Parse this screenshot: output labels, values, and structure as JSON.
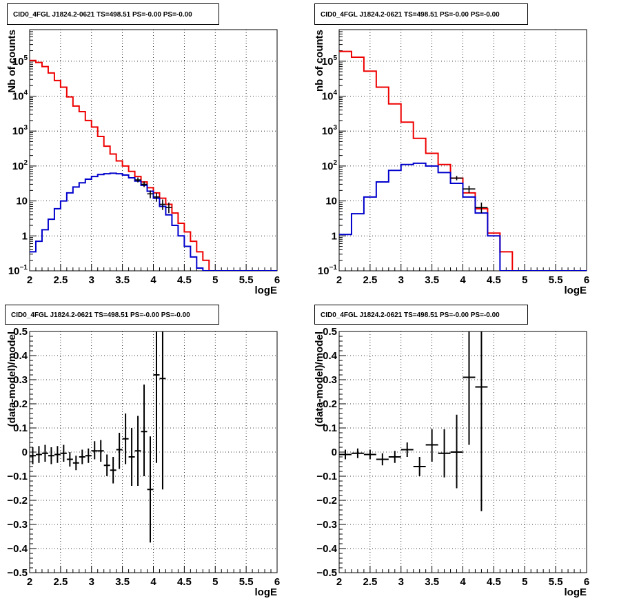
{
  "panels": [
    {
      "title": "CID0_4FGL J1824.2-0621 TS=498.51 PS=-0.00 PS=-0.00",
      "chart_data": {
        "type": "line",
        "xlabel": "logE",
        "ylabel": "Nb of counts",
        "log_y": true,
        "xlim": [
          2,
          6
        ],
        "ylim": [
          0.1,
          800000
        ],
        "grid": true,
        "x_ticks": [
          "2",
          "2.5",
          "3",
          "3.5",
          "4",
          "4.5",
          "5",
          "5.5",
          "6"
        ],
        "y_ticks": [
          {
            "v": 0.1,
            "base": "10",
            "exp": "−1"
          },
          {
            "v": 1,
            "label": "1"
          },
          {
            "v": 10,
            "label": "10"
          },
          {
            "v": 100,
            "base": "10",
            "exp": "2"
          },
          {
            "v": 1000,
            "base": "10",
            "exp": "3"
          },
          {
            "v": 10000,
            "base": "10",
            "exp": "4"
          },
          {
            "v": 100000,
            "base": "10",
            "exp": "5"
          }
        ],
        "bin_edges": [
          2.0,
          2.1,
          2.2,
          2.3,
          2.4,
          2.5,
          2.6,
          2.7,
          2.8,
          2.9,
          3.0,
          3.1,
          3.2,
          3.3,
          3.4,
          3.5,
          3.6,
          3.7,
          3.8,
          3.9,
          4.0,
          4.1,
          4.2,
          4.3,
          4.4,
          4.5,
          4.6,
          4.7,
          4.8,
          4.9,
          5.0,
          5.1,
          5.2,
          5.3,
          5.4,
          5.5,
          5.6,
          5.7,
          5.8,
          5.9,
          6.0
        ],
        "series": [
          {
            "color": "#ee0000",
            "style": "hist",
            "values": [
              105000,
              92000,
              70000,
              46000,
              28000,
              18000,
              9500,
              5200,
              3600,
              2000,
              1300,
              700,
              370,
              220,
              140,
              100,
              70,
              50,
              35,
              24,
              17,
              12,
              8,
              4.5,
              2.3,
              1.3,
              0.7,
              0.35,
              0.2,
              0.1,
              0.1,
              0.1,
              0.1,
              0.1,
              0.1,
              0.1,
              0.1,
              0.1,
              0.1,
              0.1
            ]
          },
          {
            "color": "#0000cc",
            "style": "hist",
            "values": [
              0.35,
              0.7,
              1.5,
              3,
              6,
              10,
              17,
              25,
              33,
              42,
              50,
              57,
              60,
              62,
              60,
              55,
              46,
              37,
              28,
              19,
              12,
              7,
              4,
              2,
              1,
              0.5,
              0.25,
              0.12,
              0.1,
              0.1,
              0.1,
              0.1,
              0.1,
              0.1,
              0.1,
              0.1,
              0.1,
              0.1,
              0.1,
              0.1
            ]
          },
          {
            "color": "#000000",
            "style": "points",
            "points": [
              {
                "x": 3.75,
                "y": 40,
                "lo": 34,
                "hi": 47
              },
              {
                "x": 3.85,
                "y": 30,
                "lo": 25,
                "hi": 36
              },
              {
                "x": 3.95,
                "y": 16,
                "lo": 12,
                "hi": 20
              },
              {
                "x": 4.05,
                "y": 13,
                "lo": 9.5,
                "hi": 17
              },
              {
                "x": 4.15,
                "y": 8,
                "lo": 5.5,
                "hi": 11
              },
              {
                "x": 4.25,
                "y": 6.5,
                "lo": 4.5,
                "hi": 9
              }
            ]
          }
        ]
      }
    },
    {
      "title": "CID0_4FGL J1824.2-0621 TS=498.51 PS=-0.00 PS=-0.00",
      "chart_data": {
        "type": "line",
        "xlabel": "logE",
        "ylabel": "nb of counts",
        "log_y": true,
        "xlim": [
          2,
          6
        ],
        "ylim": [
          0.1,
          800000
        ],
        "grid": true,
        "x_ticks": [
          "2",
          "2.5",
          "3",
          "3.5",
          "4",
          "4.5",
          "5",
          "5.5",
          "6"
        ],
        "y_ticks": [
          {
            "v": 0.1,
            "base": "10",
            "exp": "−1"
          },
          {
            "v": 1,
            "label": "1"
          },
          {
            "v": 10,
            "label": "10"
          },
          {
            "v": 100,
            "base": "10",
            "exp": "2"
          },
          {
            "v": 1000,
            "base": "10",
            "exp": "3"
          },
          {
            "v": 10000,
            "base": "10",
            "exp": "4"
          },
          {
            "v": 100000,
            "base": "10",
            "exp": "5"
          }
        ],
        "bin_edges": [
          2.0,
          2.2,
          2.4,
          2.6,
          2.8,
          3.0,
          3.2,
          3.4,
          3.6,
          3.8,
          4.0,
          4.2,
          4.4,
          4.6,
          4.8,
          5.0,
          5.2,
          5.4,
          5.6,
          5.8,
          6.0
        ],
        "series": [
          {
            "color": "#ee0000",
            "style": "hist",
            "values": [
              190000,
              130000,
              52000,
              18000,
              6000,
              1800,
              620,
              230,
              110,
              45,
              17,
              6,
              1.2,
              0.35,
              0.1,
              0.1,
              0.1,
              0.1,
              0.1,
              0.1
            ]
          },
          {
            "color": "#0000cc",
            "style": "hist",
            "values": [
              1.1,
              4.3,
              13,
              35,
              75,
              110,
              120,
              100,
              65,
              32,
              13,
              4.5,
              1.0,
              0.1,
              0.1,
              0.1,
              0.1,
              0.1,
              0.1,
              0.1
            ]
          },
          {
            "color": "#000000",
            "style": "points",
            "points": [
              {
                "x": 3.9,
                "y": 45,
                "lo": 39,
                "hi": 52
              },
              {
                "x": 4.1,
                "y": 22,
                "lo": 17,
                "hi": 27
              },
              {
                "x": 4.3,
                "y": 6.5,
                "lo": 4.5,
                "hi": 9
              }
            ]
          }
        ]
      }
    },
    {
      "title": "CID0_4FGL J1824.2-0621 TS=498.51 PS=-0.00 PS=-0.00",
      "chart_data": {
        "type": "scatter",
        "xlabel": "logE",
        "ylabel": "(data-model)/model",
        "log_y": false,
        "xlim": [
          2,
          6
        ],
        "ylim": [
          -0.5,
          0.5
        ],
        "grid": true,
        "x_ticks": [
          "2",
          "2.5",
          "3",
          "3.5",
          "4",
          "4.5",
          "5",
          "5.5",
          "6"
        ],
        "y_ticks": [
          {
            "v": -0.5,
            "label": "−0.5"
          },
          {
            "v": -0.4,
            "label": "−0.4"
          },
          {
            "v": -0.3,
            "label": "−0.3"
          },
          {
            "v": -0.2,
            "label": "−0.2"
          },
          {
            "v": -0.1,
            "label": "−0.1"
          },
          {
            "v": 0,
            "label": "0"
          },
          {
            "v": 0.1,
            "label": "0.1"
          },
          {
            "v": 0.2,
            "label": "0.2"
          },
          {
            "v": 0.3,
            "label": "0.3"
          },
          {
            "v": 0.4,
            "label": "0.4"
          },
          {
            "v": 0.5,
            "label": "0.5"
          }
        ],
        "x_halfwidth": 0.05,
        "points": [
          {
            "x": 2.05,
            "y": -0.015,
            "lo": -0.05,
            "hi": 0.02
          },
          {
            "x": 2.15,
            "y": -0.01,
            "lo": -0.045,
            "hi": 0.025
          },
          {
            "x": 2.25,
            "y": -0.005,
            "lo": -0.04,
            "hi": 0.03
          },
          {
            "x": 2.35,
            "y": -0.015,
            "lo": -0.05,
            "hi": 0.02
          },
          {
            "x": 2.45,
            "y": -0.01,
            "lo": -0.045,
            "hi": 0.025
          },
          {
            "x": 2.55,
            "y": -0.005,
            "lo": -0.04,
            "hi": 0.03
          },
          {
            "x": 2.65,
            "y": -0.03,
            "lo": -0.06,
            "hi": 0.0
          },
          {
            "x": 2.75,
            "y": -0.045,
            "lo": -0.075,
            "hi": -0.015
          },
          {
            "x": 2.85,
            "y": -0.02,
            "lo": -0.05,
            "hi": 0.01
          },
          {
            "x": 2.95,
            "y": -0.015,
            "lo": -0.045,
            "hi": 0.015
          },
          {
            "x": 3.05,
            "y": 0.005,
            "lo": -0.03,
            "hi": 0.045
          },
          {
            "x": 3.15,
            "y": 0.005,
            "lo": -0.04,
            "hi": 0.05
          },
          {
            "x": 3.25,
            "y": -0.055,
            "lo": -0.1,
            "hi": -0.01
          },
          {
            "x": 3.35,
            "y": -0.075,
            "lo": -0.13,
            "hi": -0.02
          },
          {
            "x": 3.45,
            "y": 0.01,
            "lo": -0.07,
            "hi": 0.08
          },
          {
            "x": 3.55,
            "y": 0.055,
            "lo": -0.05,
            "hi": 0.16
          },
          {
            "x": 3.65,
            "y": -0.02,
            "lo": -0.14,
            "hi": 0.1
          },
          {
            "x": 3.75,
            "y": 0.005,
            "lo": -0.14,
            "hi": 0.15
          },
          {
            "x": 3.85,
            "y": 0.085,
            "lo": -0.1,
            "hi": 0.28
          },
          {
            "x": 3.95,
            "y": -0.155,
            "lo": -0.375,
            "hi": 0.065
          },
          {
            "x": 4.05,
            "y": 0.32,
            "lo": -0.045,
            "hi": 0.5
          },
          {
            "x": 4.15,
            "y": 0.305,
            "lo": -0.155,
            "hi": 0.5
          }
        ]
      }
    },
    {
      "title": "CID0_4FGL J1824.2-0621 TS=498.51 PS=-0.00 PS=-0.00",
      "chart_data": {
        "type": "scatter",
        "xlabel": "logE",
        "ylabel": "(data-model)/model",
        "log_y": false,
        "xlim": [
          2,
          6
        ],
        "ylim": [
          -0.5,
          0.5
        ],
        "grid": true,
        "x_ticks": [
          "2",
          "2.5",
          "3",
          "3.5",
          "4",
          "4.5",
          "5",
          "5.5",
          "6"
        ],
        "y_ticks": [
          {
            "v": -0.5,
            "label": "−0.5"
          },
          {
            "v": -0.4,
            "label": "−0.4"
          },
          {
            "v": -0.3,
            "label": "−0.3"
          },
          {
            "v": -0.2,
            "label": "−0.2"
          },
          {
            "v": -0.1,
            "label": "−0.1"
          },
          {
            "v": 0,
            "label": "0"
          },
          {
            "v": 0.1,
            "label": "0.1"
          },
          {
            "v": 0.2,
            "label": "0.2"
          },
          {
            "v": 0.3,
            "label": "0.3"
          },
          {
            "v": 0.4,
            "label": "0.4"
          },
          {
            "v": 0.5,
            "label": "0.5"
          }
        ],
        "x_halfwidth": 0.1,
        "points": [
          {
            "x": 2.1,
            "y": -0.01,
            "lo": -0.03,
            "hi": 0.01
          },
          {
            "x": 2.3,
            "y": -0.005,
            "lo": -0.025,
            "hi": 0.015
          },
          {
            "x": 2.5,
            "y": -0.01,
            "lo": -0.03,
            "hi": 0.01
          },
          {
            "x": 2.7,
            "y": -0.03,
            "lo": -0.055,
            "hi": -0.005
          },
          {
            "x": 2.9,
            "y": -0.02,
            "lo": -0.045,
            "hi": 0.005
          },
          {
            "x": 3.1,
            "y": 0.01,
            "lo": -0.02,
            "hi": 0.04
          },
          {
            "x": 3.3,
            "y": -0.06,
            "lo": -0.1,
            "hi": -0.02
          },
          {
            "x": 3.5,
            "y": 0.03,
            "lo": -0.04,
            "hi": 0.095
          },
          {
            "x": 3.7,
            "y": -0.005,
            "lo": -0.105,
            "hi": 0.095
          },
          {
            "x": 3.9,
            "y": 0.0,
            "lo": -0.15,
            "hi": 0.155
          },
          {
            "x": 4.1,
            "y": 0.31,
            "lo": 0.03,
            "hi": 0.5
          },
          {
            "x": 4.3,
            "y": 0.27,
            "lo": -0.245,
            "hi": 0.5
          }
        ]
      }
    }
  ]
}
